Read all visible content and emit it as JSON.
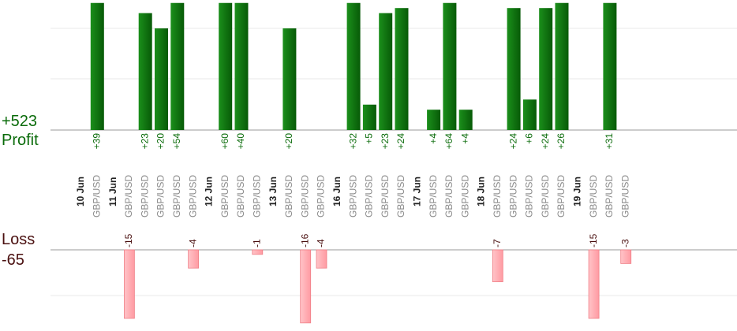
{
  "chart_data": {
    "type": "bar",
    "profit_label": "Profit",
    "profit_total": "+523",
    "loss_label": "Loss",
    "loss_total": "-65",
    "categories": [
      {
        "date": "10 Jun",
        "symbols": [
          "GBP/USD"
        ]
      },
      {
        "date": "11 Jun",
        "symbols": [
          "GBP/USD",
          "GBP/USD",
          "GBP/USD",
          "GBP/USD",
          "GBP/USD"
        ]
      },
      {
        "date": "12 Jun",
        "symbols": [
          "GBP/USD",
          "GBP/USD",
          "GBP/USD"
        ]
      },
      {
        "date": "13 Jun",
        "symbols": [
          "GBP/USD",
          "GBP/USD",
          "GBP/USD"
        ]
      },
      {
        "date": "16 Jun",
        "symbols": [
          "GBP/USD",
          "GBP/USD",
          "GBP/USD",
          "GBP/USD"
        ]
      },
      {
        "date": "17 Jun",
        "symbols": [
          "GBP/USD",
          "GBP/USD",
          "GBP/USD"
        ]
      },
      {
        "date": "18 Jun",
        "symbols": [
          "GBP/USD",
          "GBP/USD",
          "GBP/USD",
          "GBP/USD",
          "GBP/USD"
        ]
      },
      {
        "date": "19 Jun",
        "symbols": [
          "GBP/USD",
          "GBP/USD",
          "GBP/USD"
        ]
      }
    ],
    "trades": [
      {
        "date": "10 Jun",
        "value": 39
      },
      {
        "date": "11 Jun",
        "value": -15
      },
      {
        "date": "11 Jun",
        "value": 23
      },
      {
        "date": "11 Jun",
        "value": 20
      },
      {
        "date": "11 Jun",
        "value": 54
      },
      {
        "date": "11 Jun",
        "value": -4
      },
      {
        "date": "12 Jun",
        "value": 60
      },
      {
        "date": "12 Jun",
        "value": 40
      },
      {
        "date": "12 Jun",
        "value": -1
      },
      {
        "date": "13 Jun",
        "value": 20
      },
      {
        "date": "13 Jun",
        "value": -16
      },
      {
        "date": "13 Jun",
        "value": -4
      },
      {
        "date": "16 Jun",
        "value": 32
      },
      {
        "date": "16 Jun",
        "value": 5
      },
      {
        "date": "16 Jun",
        "value": 23
      },
      {
        "date": "16 Jun",
        "value": 24
      },
      {
        "date": "17 Jun",
        "value": 4
      },
      {
        "date": "17 Jun",
        "value": 64
      },
      {
        "date": "17 Jun",
        "value": 4
      },
      {
        "date": "18 Jun",
        "value": -7
      },
      {
        "date": "18 Jun",
        "value": 24
      },
      {
        "date": "18 Jun",
        "value": 6
      },
      {
        "date": "18 Jun",
        "value": 24
      },
      {
        "date": "18 Jun",
        "value": 26
      },
      {
        "date": "19 Jun",
        "value": -15
      },
      {
        "date": "19 Jun",
        "value": 31
      },
      {
        "date": "19 Jun",
        "value": -3
      }
    ],
    "profit_scale_max": 25,
    "loss_scale_max": 16,
    "colors": {
      "profit_bar": "#0a6b0a",
      "profit_bar_light": "#1a8a1a",
      "profit_text": "#0a6b0a",
      "loss_bar": "#ffb3b8",
      "loss_bar_border": "#f08088",
      "loss_text": "#4a1010",
      "date_text": "#222222",
      "symbol_text": "#8a8a8a",
      "grid": "#e8e8e8",
      "axis": "#999999"
    }
  }
}
